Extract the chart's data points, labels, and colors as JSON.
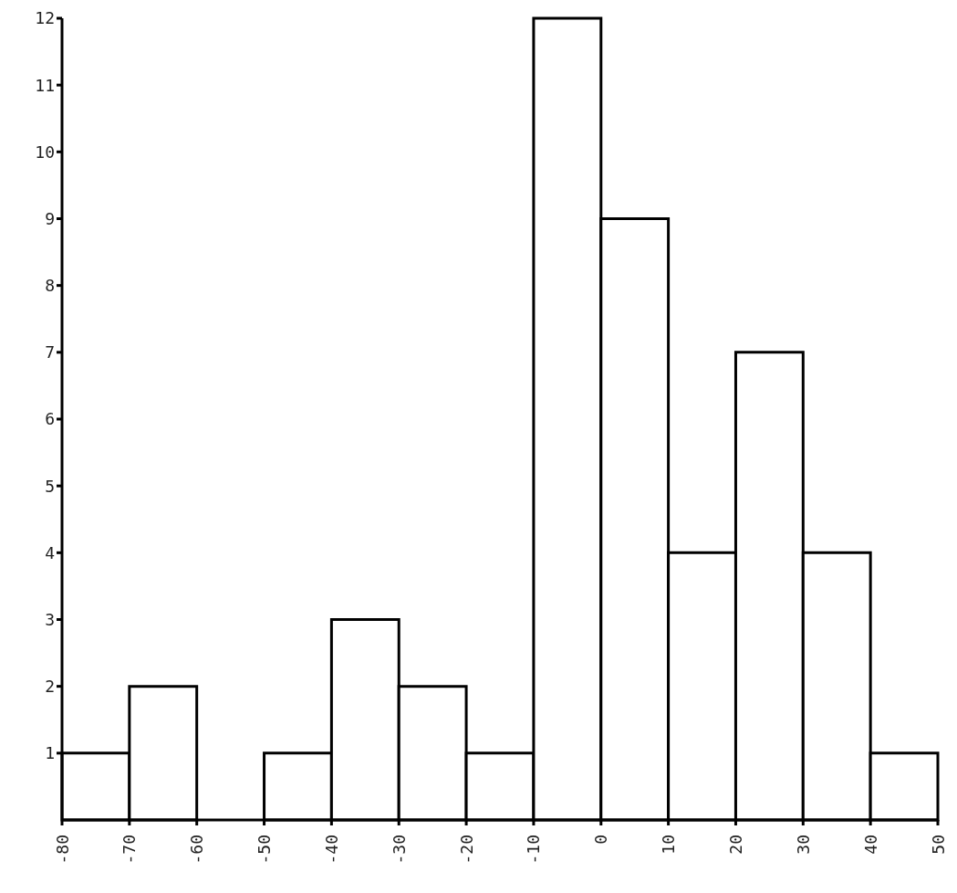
{
  "chart_data": {
    "type": "histogram",
    "bins": [
      -80,
      -70,
      -60,
      -50,
      -40,
      -30,
      -20,
      -10,
      0,
      10,
      20,
      30,
      40,
      50
    ],
    "values": [
      1,
      2,
      0,
      1,
      3,
      2,
      1,
      12,
      9,
      4,
      7,
      4,
      1
    ],
    "color": "#ffffff",
    "xlim": [
      -80,
      50
    ],
    "xticks": [
      -80,
      -70,
      -60,
      -50,
      -40,
      -30,
      -20,
      -10,
      0,
      10,
      20,
      30,
      40,
      50
    ],
    "ylim": [
      0,
      12
    ],
    "yticks": [
      1,
      2,
      3,
      4,
      5,
      6,
      7,
      8,
      9,
      10,
      11,
      12
    ],
    "grid": false
  }
}
